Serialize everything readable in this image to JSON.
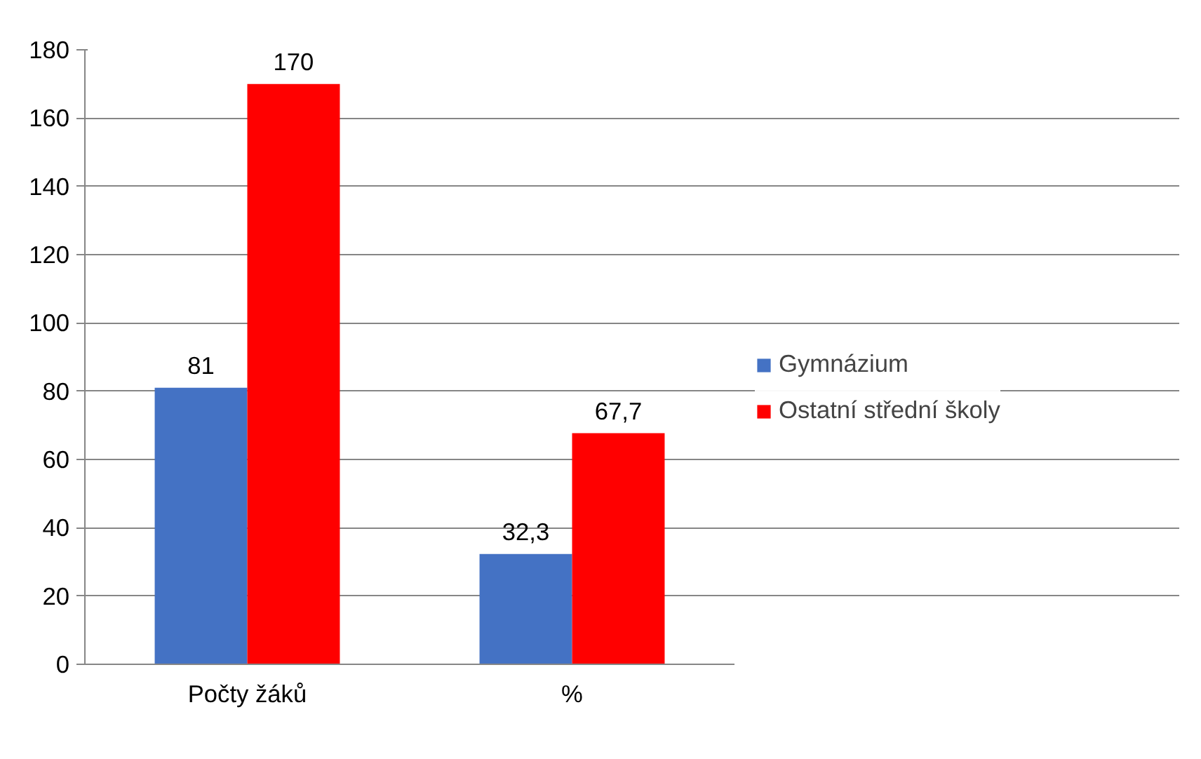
{
  "chart_data": {
    "type": "bar",
    "categories": [
      "Počty žáků",
      "%"
    ],
    "series": [
      {
        "name": "Gymnázium",
        "color": "#4472c4",
        "values": [
          81,
          32.3
        ],
        "value_labels": [
          "81",
          "32,3"
        ]
      },
      {
        "name": "Ostatní střední školy",
        "color": "#ff0000",
        "values": [
          170,
          67.7
        ],
        "value_labels": [
          "170",
          "67,7"
        ]
      }
    ],
    "ylim": [
      0,
      180
    ],
    "yticks": [
      0,
      20,
      40,
      60,
      80,
      100,
      120,
      140,
      160,
      180
    ],
    "grid": "y",
    "legend": "right"
  }
}
